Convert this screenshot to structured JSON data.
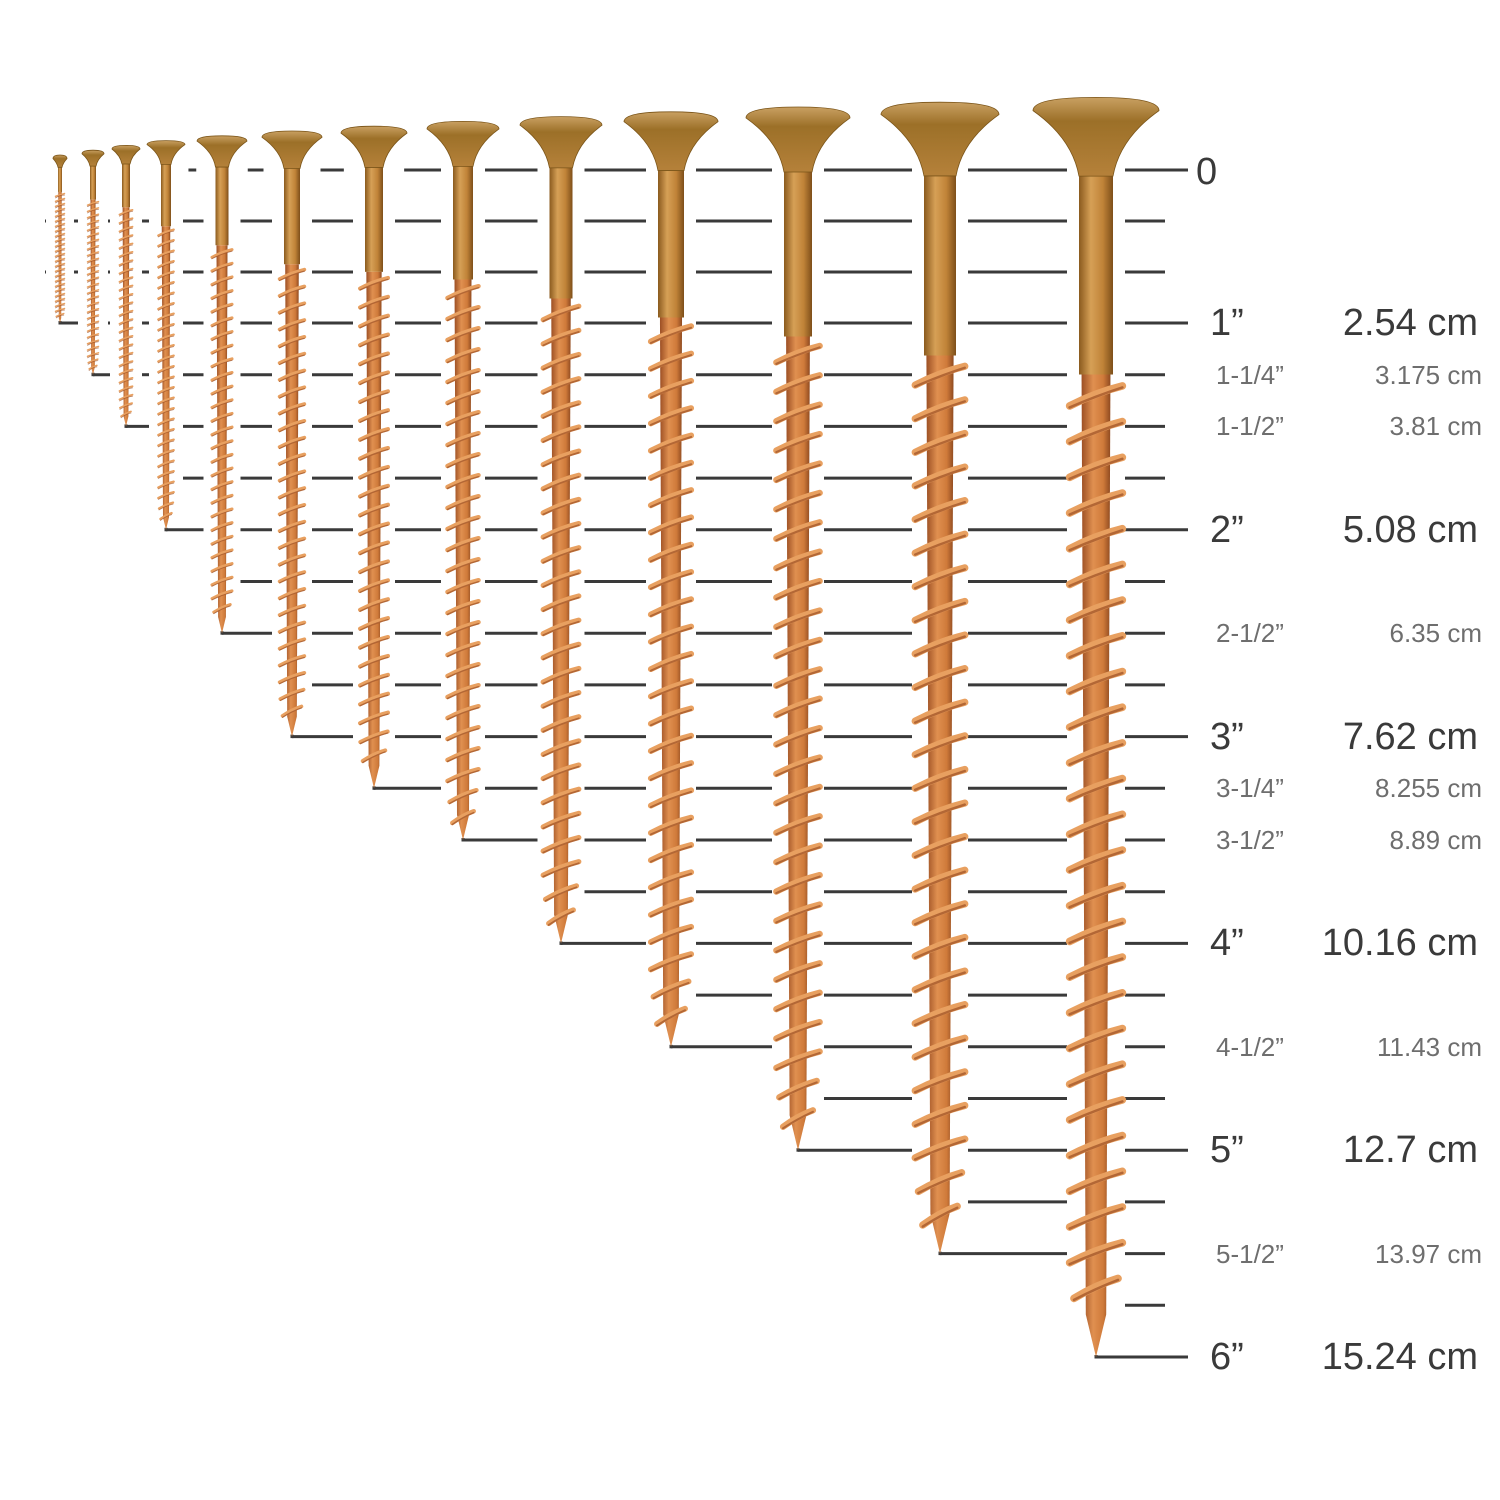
{
  "colors": {
    "line": "#3a3a3a",
    "head": "#a97a2e",
    "shank": "#c2893f",
    "thread": "#d2773a",
    "thread_dark": "#9c4f24",
    "major_text": "#3a3a3a",
    "minor_text": "#6e6e6e"
  },
  "screw_lengths_in": [
    1,
    1.25,
    1.5,
    2,
    2.5,
    3,
    3.25,
    3.5,
    4,
    4.5,
    5,
    5.5,
    6
  ],
  "scale": {
    "zero_label": "0",
    "marks": [
      {
        "inch": 1,
        "in_label": "1”",
        "cm_label": "2.54 cm",
        "major": true
      },
      {
        "inch": 1.25,
        "in_label": "1-1/4”",
        "cm_label": "3.175 cm",
        "major": false
      },
      {
        "inch": 1.5,
        "in_label": "1-1/2”",
        "cm_label": "3.81 cm",
        "major": false
      },
      {
        "inch": 2,
        "in_label": "2”",
        "cm_label": "5.08 cm",
        "major": true
      },
      {
        "inch": 2.5,
        "in_label": "2-1/2”",
        "cm_label": "6.35 cm",
        "major": false
      },
      {
        "inch": 3,
        "in_label": "3”",
        "cm_label": "7.62 cm",
        "major": true
      },
      {
        "inch": 3.25,
        "in_label": "3-1/4”",
        "cm_label": "8.255 cm",
        "major": false
      },
      {
        "inch": 3.5,
        "in_label": "3-1/2”",
        "cm_label": "8.89 cm",
        "major": false
      },
      {
        "inch": 4,
        "in_label": "4”",
        "cm_label": "10.16 cm",
        "major": true
      },
      {
        "inch": 4.5,
        "in_label": "4-1/2”",
        "cm_label": "11.43 cm",
        "major": false
      },
      {
        "inch": 5,
        "in_label": "5”",
        "cm_label": "12.7 cm",
        "major": true
      },
      {
        "inch": 5.5,
        "in_label": "5-1/2”",
        "cm_label": "13.97 cm",
        "major": false
      },
      {
        "inch": 6,
        "in_label": "6”",
        "cm_label": "15.24 cm",
        "major": true
      }
    ]
  }
}
